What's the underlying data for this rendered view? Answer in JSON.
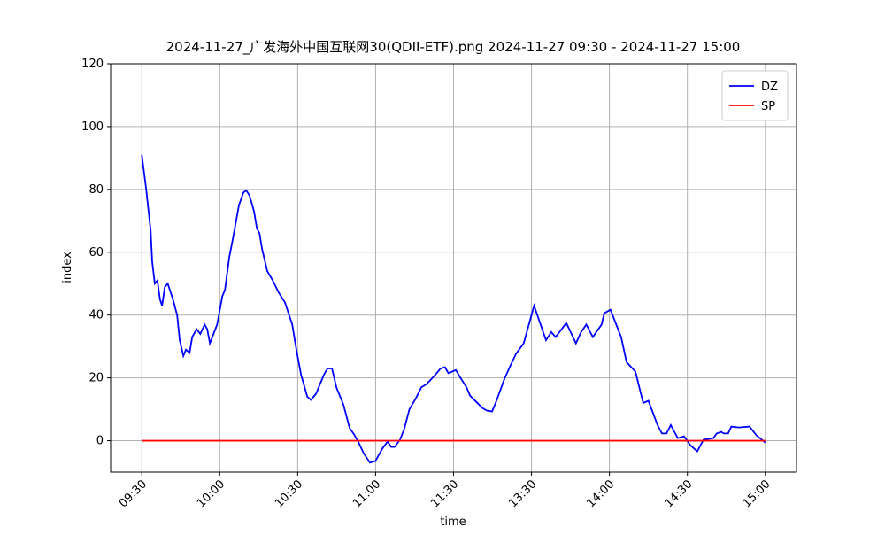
{
  "chart_data": {
    "type": "line",
    "title": "2024-11-27_广发海外中国互联网30(QDII-ETF).png 2024-11-27 09:30 - 2024-11-27 15:00",
    "x_label": "time",
    "y_label": "index",
    "xlim": [
      -12,
      252
    ],
    "ylim": [
      -10,
      120
    ],
    "xticks": [
      {
        "value": 0,
        "label": "09:30"
      },
      {
        "value": 30,
        "label": "10:00"
      },
      {
        "value": 60,
        "label": "10:30"
      },
      {
        "value": 90,
        "label": "11:00"
      },
      {
        "value": 120,
        "label": "11:30"
      },
      {
        "value": 150,
        "label": "13:30"
      },
      {
        "value": 180,
        "label": "14:00"
      },
      {
        "value": 210,
        "label": "14:30"
      },
      {
        "value": 240,
        "label": "15:00"
      }
    ],
    "yticks": [
      0,
      20,
      40,
      60,
      80,
      100,
      120
    ],
    "grid": true,
    "legend": "upper right",
    "series": [
      {
        "name": "DZ",
        "color": "#0000ff",
        "x": [
          0,
          1.7,
          3.4,
          4,
          5,
          6,
          7,
          7.8,
          8.9,
          10,
          12,
          13.6,
          14.6,
          16,
          17,
          18.4,
          19.4,
          21.1,
          22.5,
          24.2,
          25.2,
          26.2,
          29,
          31,
          32,
          33.7,
          35,
          37.4,
          39.1,
          40.2,
          41.5,
          43.2,
          44.3,
          45.3,
          46.3,
          48.3,
          50.4,
          52.8,
          55.1,
          57.9,
          59.6,
          61.3,
          63.7,
          65.1,
          67.1,
          70.1,
          71.5,
          73.2,
          74.9,
          77.6,
          80,
          81.7,
          83.4,
          85.4,
          87.8,
          89.9,
          92.6,
          94.6,
          96,
          97.3,
          99.4,
          101,
          103,
          105.5,
          107.6,
          109.6,
          113,
          115,
          116.7,
          118,
          120.9,
          122.9,
          125,
          126.3,
          128.7,
          131.1,
          132.8,
          134.8,
          136.2,
          139.6,
          141.6,
          144,
          147,
          151,
          153.9,
          155.6,
          157.6,
          159.3,
          163.4,
          165.4,
          167.1,
          169.1,
          171.1,
          173.6,
          177,
          178,
          180.4,
          184.5,
          186.6,
          190,
          193,
          195,
          198.5,
          200.2,
          202,
          203.6,
          206.3,
          208.7,
          211.1,
          213.8,
          216.2,
          220,
          221.3,
          223,
          224,
          225.7,
          226.9,
          229.8,
          233.9,
          236.6,
          240
        ],
        "values": [
          91,
          80,
          67,
          57,
          50,
          51,
          45,
          43,
          49,
          50,
          45,
          40,
          32,
          27,
          29,
          28,
          33,
          35.5,
          34,
          37,
          35.5,
          31,
          37,
          46,
          48,
          58.6,
          64,
          75,
          79,
          79.7,
          78,
          73,
          67.6,
          66,
          61,
          54,
          51,
          47,
          44,
          37,
          28.5,
          21,
          14,
          13,
          15,
          21,
          23,
          23,
          17,
          11.5,
          4,
          2,
          -0.5,
          -4,
          -7,
          -6.5,
          -2.5,
          -0.3,
          -2,
          -2,
          0.3,
          3.7,
          10,
          13.5,
          17,
          18,
          21,
          23,
          23.4,
          21.5,
          22.5,
          19.7,
          17,
          14.4,
          12.4,
          10.4,
          9.6,
          9.3,
          12,
          19.7,
          23.4,
          27.6,
          31,
          43,
          36,
          32,
          34.6,
          33,
          37.5,
          34,
          31,
          34.6,
          37,
          33,
          37,
          40.6,
          41.7,
          33,
          25,
          22,
          12,
          12.7,
          5,
          2.3,
          2.3,
          5,
          0.8,
          1.4,
          -1.4,
          -3.4,
          0.3,
          0.8,
          2.3,
          2.8,
          2.3,
          2.3,
          4.5,
          4.2,
          4.5,
          1.7,
          -0.6
        ]
      },
      {
        "name": "SP",
        "color": "#ff0000",
        "x": [
          0,
          240
        ],
        "values": [
          0,
          0
        ]
      }
    ]
  }
}
